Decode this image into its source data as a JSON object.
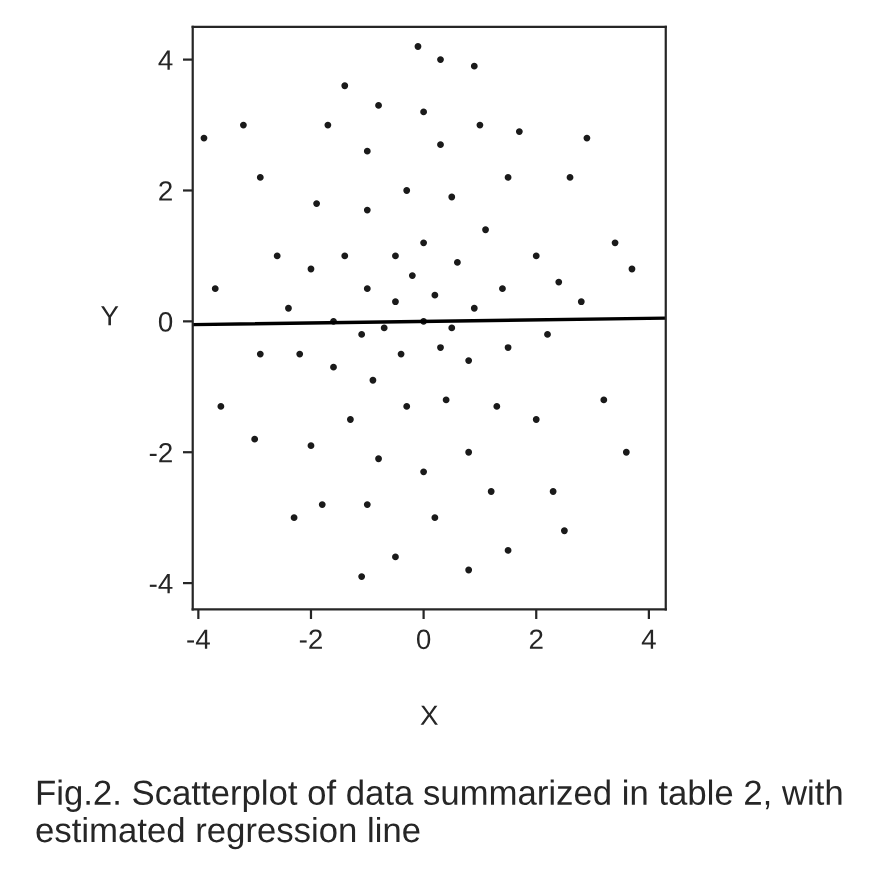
{
  "chart_data": {
    "type": "scatter",
    "xlabel": "X",
    "ylabel": "Y",
    "xlim": [
      -4.1,
      4.3
    ],
    "ylim": [
      -4.4,
      4.5
    ],
    "xticks": [
      -4,
      -2,
      0,
      2,
      4
    ],
    "yticks": [
      -4,
      -2,
      0,
      2,
      4
    ],
    "grid": false,
    "legend": false,
    "annotations": [
      "Fig.2. Scatterplot of data summarized in table 2, with estimated regression line"
    ],
    "series": [
      {
        "marker": "circle",
        "color": "#1a1a1a",
        "x": [
          -0.1,
          0.3,
          0.9,
          -1.4,
          -3.9,
          -3.2,
          -2.9,
          2.6,
          3.4,
          3.7,
          -3.6,
          3.6,
          -3.7,
          3.2,
          2.5,
          -2.3,
          -0.5,
          0.8,
          -1.1,
          1.5,
          -3.0,
          2.9,
          -2.6,
          2.8,
          -2.9,
          2.3,
          -1.8,
          1.7,
          -1.7,
          0.0,
          1.0,
          -0.8,
          -1.6,
          -1.4,
          -1.0,
          -0.3,
          0.5,
          1.1,
          1.4,
          1.5,
          1.3,
          0.8,
          0.0,
          -0.8,
          -1.3,
          -1.6,
          -1.0,
          -0.5,
          0.0,
          0.6,
          0.9,
          0.8,
          0.4,
          -0.3,
          -0.9,
          -1.1,
          -0.5,
          0.2,
          0.3,
          -0.4,
          0.0,
          -0.2,
          0.5,
          -0.7,
          -2.0,
          -2.2,
          -1.9,
          -1.0,
          0.3,
          1.5,
          2.0,
          2.2,
          2.0,
          1.2,
          0.2,
          -1.0,
          -2.0,
          -2.4,
          2.4
        ],
        "values": [
          4.2,
          4.0,
          3.9,
          3.6,
          2.8,
          3.0,
          2.2,
          2.2,
          1.2,
          0.8,
          -1.3,
          -2.0,
          0.5,
          -1.2,
          -3.2,
          -3.0,
          -3.6,
          -3.8,
          -3.9,
          -3.5,
          -1.8,
          2.8,
          1.0,
          0.3,
          -0.5,
          -2.6,
          -2.8,
          2.9,
          3.0,
          3.2,
          3.0,
          3.3,
          0.0,
          1.0,
          1.7,
          2.0,
          1.9,
          1.4,
          0.5,
          -0.4,
          -1.3,
          -2.0,
          -2.3,
          -2.1,
          -1.5,
          -0.7,
          0.5,
          1.0,
          1.2,
          0.9,
          0.2,
          -0.6,
          -1.2,
          -1.3,
          -0.9,
          -0.2,
          0.3,
          0.4,
          -0.4,
          -0.5,
          0.0,
          0.7,
          -0.1,
          -0.1,
          0.8,
          -0.5,
          1.8,
          2.6,
          2.7,
          2.2,
          1.0,
          -0.2,
          -1.5,
          -2.6,
          -3.0,
          -2.8,
          -1.9,
          0.2,
          0.6
        ]
      },
      {
        "type": "line",
        "color": "#000000",
        "x": [
          -4.1,
          4.3
        ],
        "values": [
          -0.05,
          0.05
        ]
      }
    ]
  }
}
